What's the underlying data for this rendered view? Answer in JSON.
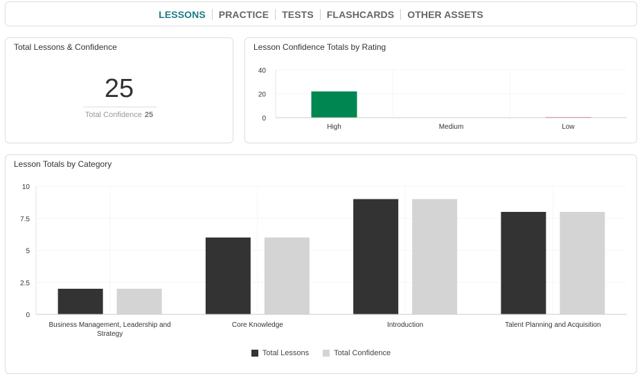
{
  "nav": {
    "items": [
      {
        "label": "LESSONS",
        "active": true
      },
      {
        "label": "PRACTICE",
        "active": false
      },
      {
        "label": "TESTS",
        "active": false
      },
      {
        "label": "FLASHCARDS",
        "active": false
      },
      {
        "label": "OTHER ASSETS",
        "active": false
      }
    ],
    "active_color": "#1b7b86"
  },
  "summary": {
    "title": "Total Lessons & Confidence",
    "total_lessons": "25",
    "confidence_label": "Total Confidence",
    "confidence_value": "25"
  },
  "chart_data": [
    {
      "type": "bar",
      "title": "Lesson Confidence Totals by Rating",
      "categories": [
        "High",
        "Medium",
        "Low"
      ],
      "values": [
        22,
        0,
        0.5
      ],
      "colors": [
        "#008751",
        "#f5a623",
        "#d9304a"
      ],
      "ylim": [
        0,
        40
      ],
      "yticks": [
        "0",
        "20",
        "40"
      ],
      "grid": true
    },
    {
      "type": "bar",
      "title": "Lesson Totals by Category",
      "categories": [
        "Business Management, Leadership and Strategy",
        "Core Knowledge",
        "Introduction",
        "Talent Planning and Acquisition"
      ],
      "series": [
        {
          "name": "Total Lessons",
          "values": [
            2,
            6,
            9,
            8
          ],
          "color": "#333333"
        },
        {
          "name": "Total Confidence",
          "values": [
            2,
            6,
            9,
            8
          ],
          "color": "#d4d4d4"
        }
      ],
      "ylim": [
        0,
        10
      ],
      "yticks": [
        "0",
        "2.5",
        "5",
        "7.5",
        "10"
      ],
      "grid": true,
      "legend": "bottom"
    }
  ]
}
